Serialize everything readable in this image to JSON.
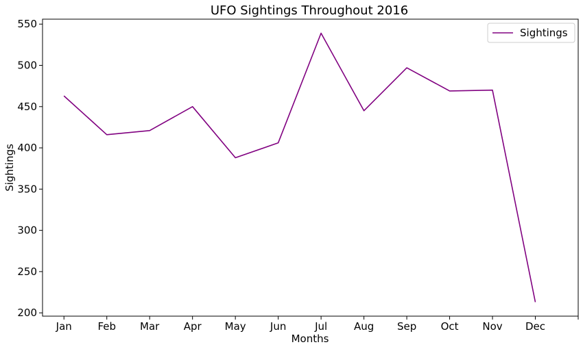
{
  "chart_data": {
    "type": "line",
    "title": "UFO Sightings Throughout 2016",
    "xlabel": "Months",
    "ylabel": "Sightings",
    "categories": [
      "Jan",
      "Feb",
      "Mar",
      "Apr",
      "May",
      "Jun",
      "Jul",
      "Aug",
      "Sep",
      "Oct",
      "Nov",
      "Dec"
    ],
    "series": [
      {
        "name": "Sightings",
        "color": "#800080",
        "values": [
          463,
          416,
          421,
          450,
          388,
          406,
          539,
          445,
          497,
          469,
          470,
          213
        ]
      }
    ],
    "yticks": [
      200,
      250,
      300,
      350,
      400,
      450,
      500,
      550
    ],
    "ylim": [
      196,
      556
    ],
    "grid": false,
    "legend_position": "top-right"
  }
}
